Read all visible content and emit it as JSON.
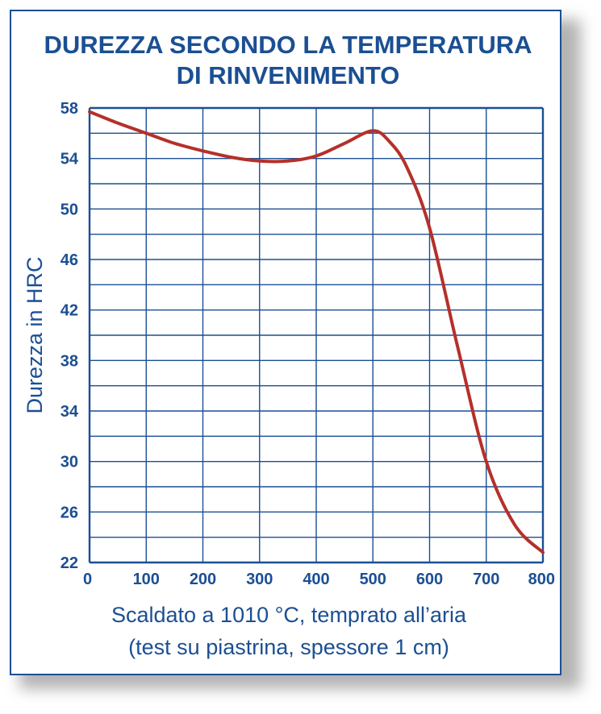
{
  "chart_data": {
    "type": "line",
    "title_lines": [
      "DUREZZA SECONDO LA TEMPERATURA",
      "DI RINVENIMENTO"
    ],
    "xlabel_lines": [
      "Scaldato a 1010 °C, temprato all’aria",
      "(test su piastrina, spessore 1 cm)"
    ],
    "ylabel": "Durezza in HRC",
    "xlim": [
      0,
      800
    ],
    "ylim": [
      22,
      58
    ],
    "x_ticks": [
      0,
      100,
      200,
      300,
      400,
      500,
      600,
      700,
      800
    ],
    "y_ticks": [
      22,
      26,
      30,
      34,
      38,
      42,
      46,
      50,
      54,
      58
    ],
    "grid": true,
    "series": [
      {
        "color": "#b5302a",
        "x": [
          0,
          50,
          100,
          150,
          200,
          250,
          300,
          350,
          400,
          450,
          500,
          530,
          560,
          600,
          650,
          700,
          750,
          800
        ],
        "y": [
          57.7,
          56.8,
          56.0,
          55.2,
          54.6,
          54.1,
          53.8,
          53.8,
          54.2,
          55.2,
          56.2,
          55.3,
          53.3,
          48.5,
          39.0,
          30.0,
          25.0,
          22.8
        ]
      }
    ],
    "colors": {
      "text": "#1b4f93",
      "grid": "#1b4f93",
      "line": "#b5302a"
    }
  }
}
